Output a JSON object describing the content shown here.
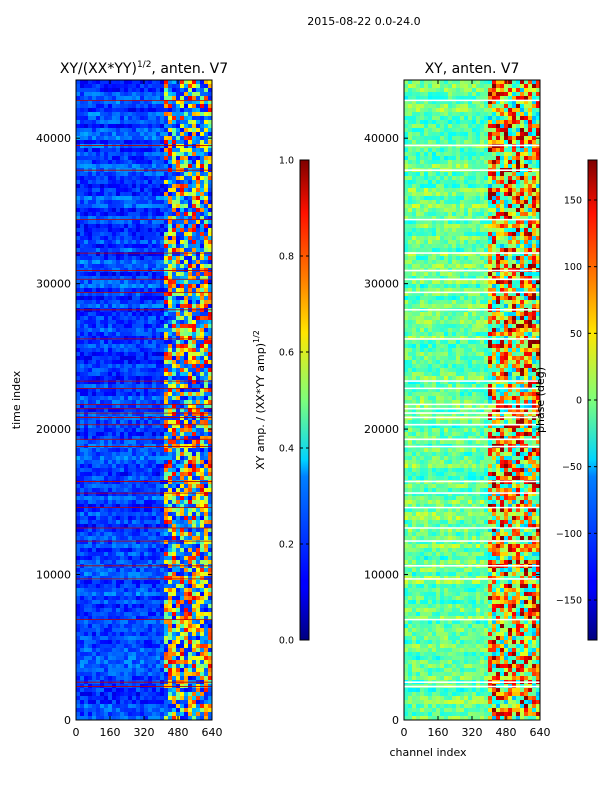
{
  "figure_title": "2015-08-22 0.0-24.0",
  "chart_data": [
    {
      "type": "heatmap",
      "title": "XY/(XX*YY)^{1/2}, anten. V7",
      "title_main": "XY/(XX*YY)",
      "title_exp": "1/2",
      "title_tail": ", anten. V7",
      "xlabel": "",
      "ylabel": "time index",
      "xlim": [
        0,
        640
      ],
      "ylim": [
        0,
        44000
      ],
      "xticks": [
        0,
        160,
        320,
        480,
        640
      ],
      "yticks": [
        0,
        10000,
        20000,
        30000,
        40000
      ],
      "active_channel_range": [
        410,
        640
      ],
      "colorbar": {
        "label": "XY amp. / (XX*YY amp)^{1/2}",
        "label_main": "XY amp. / (XX*YY amp)",
        "label_exp": "1/2",
        "range": [
          0.0,
          1.0
        ],
        "ticks": [
          "0.0",
          "0.2",
          "0.4",
          "0.6",
          "0.8",
          "1.0"
        ],
        "tick_values": [
          0.0,
          0.2,
          0.4,
          0.6,
          0.8,
          1.0
        ],
        "colormap": "jet"
      },
      "flagged_rows": [
        2300,
        2600,
        6900,
        9700,
        10600,
        12300,
        13200,
        14600,
        15600,
        16400,
        18800,
        19300,
        20300,
        20800,
        21100,
        21400,
        21700,
        22800,
        23300,
        26200,
        28200,
        29400,
        30300,
        30900,
        32100,
        34400,
        37800,
        39500,
        42600
      ]
    },
    {
      "type": "heatmap",
      "title": "XY, anten. V7",
      "xlabel": "channel index",
      "ylabel": "",
      "xlim": [
        0,
        640
      ],
      "ylim": [
        0,
        44000
      ],
      "xticks": [
        0,
        160,
        320,
        480,
        640
      ],
      "yticks": [
        0,
        10000,
        20000,
        30000,
        40000
      ],
      "active_channel_range": [
        400,
        640
      ],
      "colorbar": {
        "label": "phase (deg)",
        "range": [
          -180,
          180
        ],
        "ticks": [
          "150",
          "100",
          "50",
          "0",
          "−50",
          "−100",
          "−150"
        ],
        "tick_values": [
          150,
          100,
          50,
          0,
          -50,
          -100,
          -150
        ],
        "colormap": "jet"
      },
      "flagged_rows": [
        2300,
        2600,
        6900,
        9700,
        10600,
        12300,
        13200,
        14600,
        15600,
        16400,
        18800,
        19300,
        20300,
        20800,
        21100,
        21400,
        21700,
        22800,
        23300,
        26200,
        28200,
        29400,
        30300,
        30900,
        32100,
        34400,
        37800,
        39500,
        42600
      ]
    }
  ]
}
